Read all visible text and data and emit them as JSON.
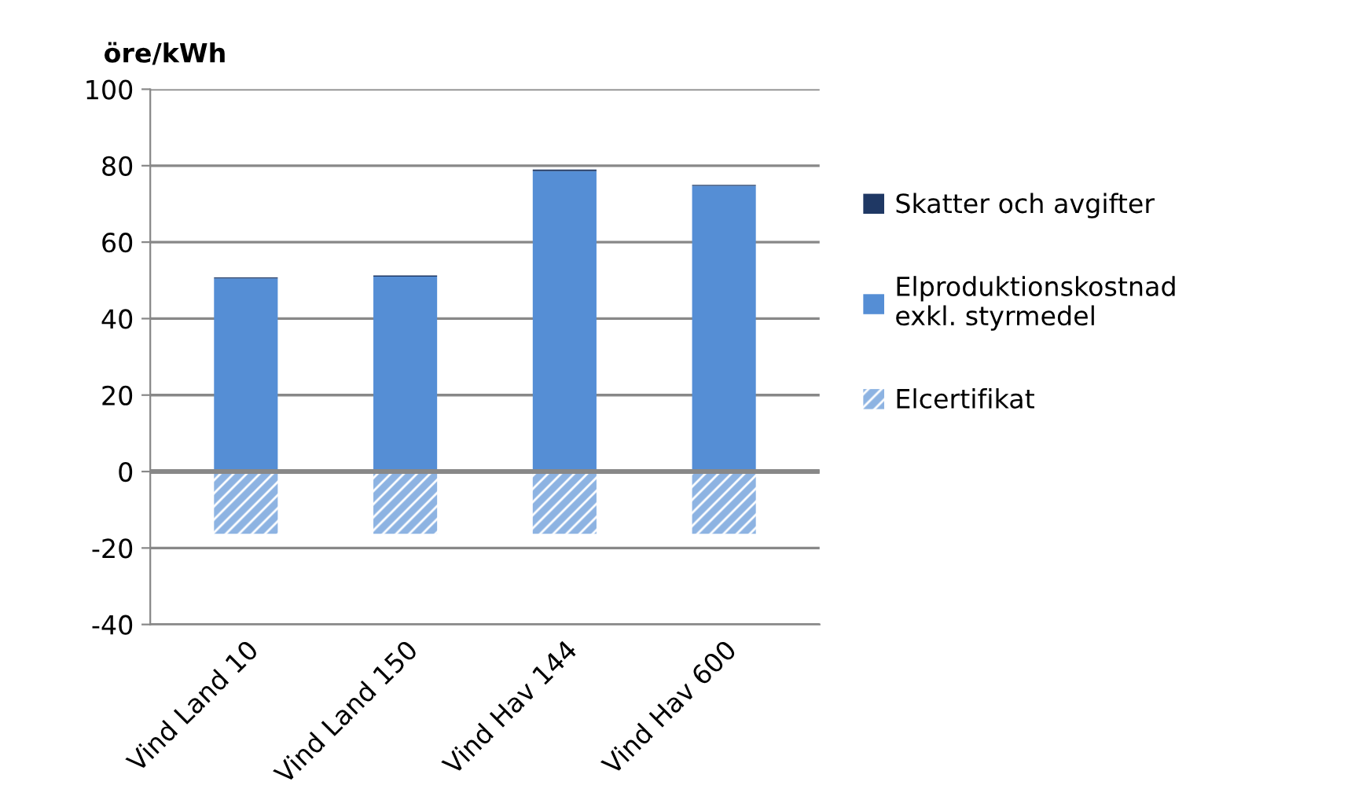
{
  "chart_data": {
    "type": "bar",
    "stacked": true,
    "ylabel": "öre/kWh",
    "categories": [
      "Vind Land 10",
      "Vind Land 150",
      "Vind Hav 144",
      "Vind Hav 600"
    ],
    "series": [
      {
        "name": "Elcertifikat",
        "color": "#8db3e2",
        "values": [
          -16.3,
          -16.3,
          -16.3,
          -16.3
        ]
      },
      {
        "name": "Elproduktionskostnad exkl. styrmedel",
        "color": "#558ed5",
        "values": [
          50.5,
          51,
          78.6,
          74.7
        ]
      },
      {
        "name": "Skatter och avgifter",
        "color": "#1f3864",
        "values": [
          0.3,
          0.3,
          0.4,
          0.3
        ]
      }
    ],
    "ylim": [
      -40,
      100
    ],
    "yticks": [
      -40,
      -20,
      0,
      20,
      40,
      60,
      80,
      100
    ],
    "grid": "y",
    "legend": "right"
  }
}
